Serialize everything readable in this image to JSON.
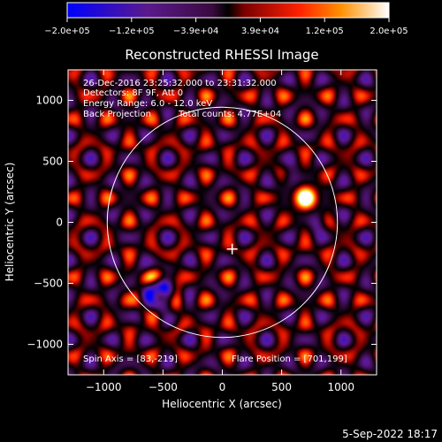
{
  "colorbar": {
    "ticks": [
      "-2.0e+05",
      "-1.2e+05",
      "-3.9e+04",
      "3.9e+04",
      "1.2e+05",
      "2.0e+05"
    ],
    "range": [
      -200000,
      200000
    ]
  },
  "footer": {
    "timestamp": "5-Sep-2022 18:17"
  },
  "chart_data": {
    "type": "heatmap",
    "title": "Reconstructed RHESSI Image",
    "xlabel": "Heliocentric X (arcsec)",
    "ylabel": "Heliocentric Y (arcsec)",
    "xlim": [
      -1300,
      1300
    ],
    "ylim": [
      -1250,
      1250
    ],
    "xticks": [
      -1000,
      -500,
      0,
      500,
      1000
    ],
    "xtick_labels": [
      "−1000",
      "−500",
      "0",
      "500",
      "1000"
    ],
    "yticks": [
      -1000,
      -500,
      0,
      500,
      1000
    ],
    "ytick_labels": [
      "−1000",
      "−500",
      "0",
      "500",
      "1000"
    ],
    "annotations": {
      "line1": "26-Dec-2016 23:25:32.000 to 23:31:32.000",
      "line2": "Detectors: 8F 9F, Att 0",
      "line3": "Energy Range: 6.0 - 12.0 keV",
      "line4": "Back Projection",
      "line5": "Total counts: 4.77E+04",
      "spin_axis": "Spin Axis = [83,-219]",
      "flare_position": "Flare Position = [701,199]"
    },
    "solar_limb_radius_arcsec": 970,
    "sun_center_marker": [
      83,
      -219
    ],
    "bright_source": [
      701,
      199
    ],
    "dark_sources": [
      [
        -540,
        -600
      ],
      [
        800,
        0
      ],
      [
        570,
        370
      ]
    ],
    "colors": {
      "limb": "#ffffff",
      "background": "#000000"
    },
    "grid": false
  }
}
